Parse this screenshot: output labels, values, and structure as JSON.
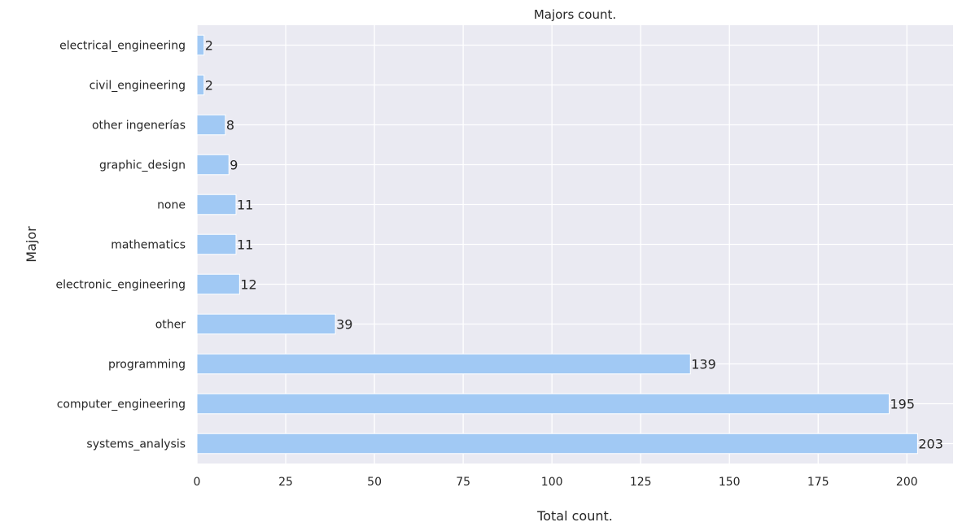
{
  "chart_data": {
    "type": "bar",
    "orientation": "horizontal",
    "title": "Majors count.",
    "xlabel": "Total count.",
    "ylabel": "Major",
    "xlim": [
      0,
      213
    ],
    "xticks": [
      0,
      25,
      50,
      75,
      100,
      125,
      150,
      175,
      200
    ],
    "grid": true,
    "categories": [
      "systems_analysis",
      "computer_engineering",
      "programming",
      "other",
      "electronic_engineering",
      "mathematics",
      "none",
      "graphic_design",
      "other ingenerías",
      "civil_engineering",
      "electrical_engineering"
    ],
    "values": [
      203,
      195,
      139,
      39,
      12,
      11,
      11,
      9,
      8,
      2,
      2
    ],
    "colors": {
      "bar": "#a1c9f4",
      "background": "#eaeaf2",
      "grid": "#ffffff",
      "text": "#262626"
    }
  }
}
